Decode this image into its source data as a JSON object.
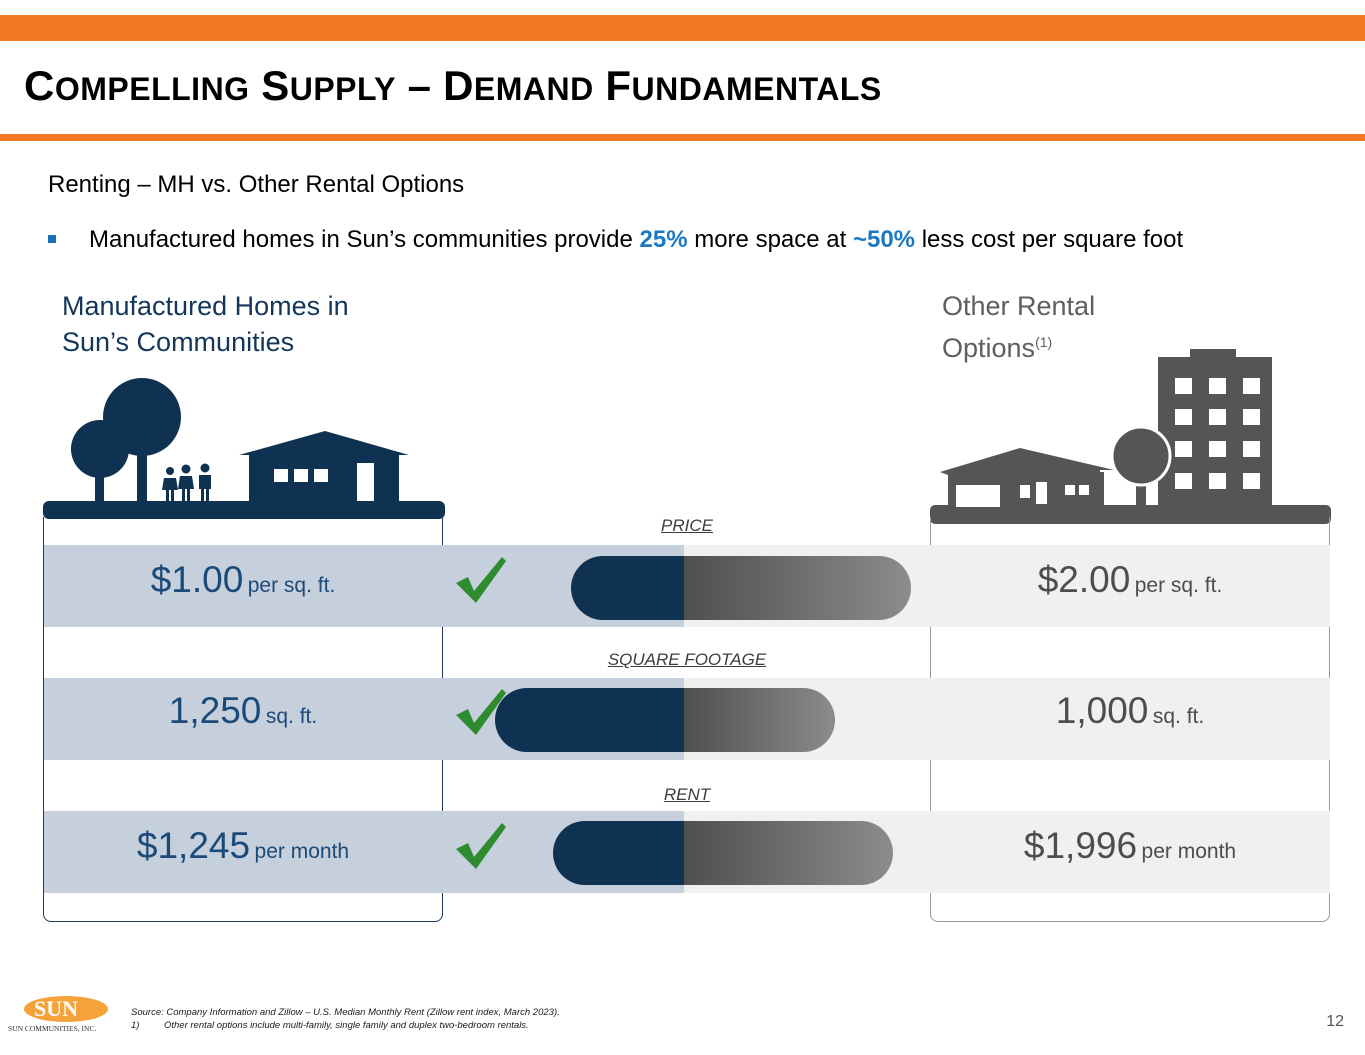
{
  "header": {
    "title_words": [
      {
        "cap": "C",
        "rest": "OMPELLING"
      },
      {
        "cap": "S",
        "rest": "UPPLY"
      },
      {
        "cap": "–",
        "rest": ""
      },
      {
        "cap": "D",
        "rest": "EMAND"
      },
      {
        "cap": "F",
        "rest": "UNDAMENTALS"
      }
    ]
  },
  "subtitle": "Renting – MH vs. Other Rental Options",
  "bullet": {
    "part1": "Manufactured homes in Sun’s communities provide ",
    "highlight1": "25%",
    "part2": " more space at ",
    "highlight2": "~50%",
    "part3": " less cost per square foot"
  },
  "left_column": {
    "title_line1": "Manufactured Homes in",
    "title_line2": "Sun’s Communities"
  },
  "right_column": {
    "title_line1": "Other Rental",
    "title_line2": "Options",
    "footnote_ref": "(1)"
  },
  "comparisons": [
    {
      "label": "PRICE",
      "left_value": "$1.00",
      "left_unit": "per sq. ft.",
      "right_value": "$2.00",
      "right_unit": "per sq. ft.",
      "left_amount": 1.0,
      "right_amount": 2.0
    },
    {
      "label": "SQUARE FOOTAGE",
      "left_value": "1,250",
      "left_unit": "sq. ft.",
      "right_value": "1,000",
      "right_unit": "sq. ft.",
      "left_amount": 1250,
      "right_amount": 1000
    },
    {
      "label": "RENT",
      "left_value": "$1,245",
      "left_unit": "per month",
      "right_value": "$1,996",
      "right_unit": "per month",
      "left_amount": 1245,
      "right_amount": 1996
    }
  ],
  "icons": {
    "check": "checkmark-icon",
    "left_scene": "community-home-illustration",
    "right_scene": "rental-buildings-illustration"
  },
  "colors": {
    "accent": "#f47725",
    "navy": "#0f3152",
    "highlight_blue": "#1b78c2",
    "check_green": "#2e8b2e",
    "gray_dark": "#4f4f4f"
  },
  "footer": {
    "logo_text": "SUN",
    "logo_subtext": "SUN COMMUNITIES, INC.",
    "source": "Source: Company Information and Zillow – U.S. Median Monthly Rent (Zillow rent index, March 2023).",
    "footnote_number": "1)",
    "footnote_text": "Other rental options include multi-family, single family and duplex two-bedroom rentals.",
    "page_number": "12"
  }
}
